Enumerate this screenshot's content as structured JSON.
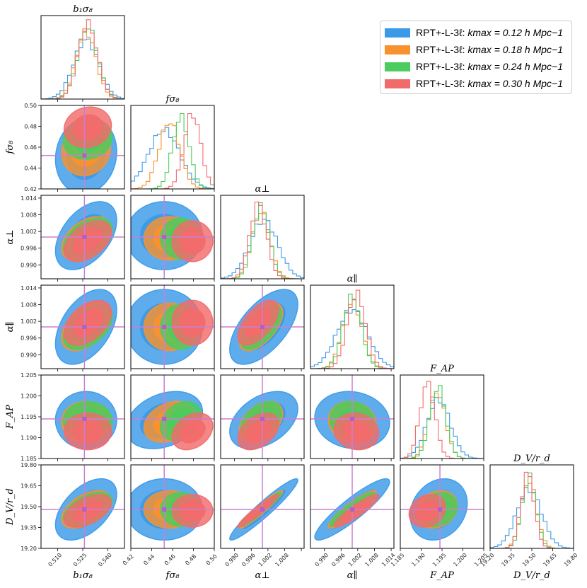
{
  "chart_data": {
    "type": "corner",
    "parameters": [
      {
        "key": "b1s8",
        "title": "b₁σ₈",
        "range": [
          0.5,
          0.55
        ],
        "ticks": [
          0.51,
          0.525,
          0.54
        ],
        "ticklabels": [
          "0.510",
          "0.525",
          "0.540"
        ],
        "truth": 0.526
      },
      {
        "key": "fs8",
        "title": "fσ₈",
        "range": [
          0.42,
          0.5
        ],
        "ticks": [
          0.42,
          0.44,
          0.46,
          0.48,
          0.5
        ],
        "ticklabels": [
          "0.42",
          "0.44",
          "0.46",
          "0.48",
          "0.50"
        ],
        "truth": 0.452
      },
      {
        "key": "aperp",
        "title": "α⊥",
        "range": [
          0.985,
          1.015
        ],
        "ticks": [
          0.99,
          0.996,
          1.002,
          1.008,
          1.014
        ],
        "ticklabels": [
          "0.990",
          "0.996",
          "1.002",
          "1.008",
          "1.014"
        ],
        "truth": 1.0
      },
      {
        "key": "apar",
        "title": "α∥",
        "range": [
          0.985,
          1.015
        ],
        "ticks": [
          0.99,
          0.996,
          1.002,
          1.008,
          1.014
        ],
        "ticklabels": [
          "0.990",
          "0.996",
          "1.002",
          "1.008",
          "1.014"
        ],
        "truth": 1.0
      },
      {
        "key": "FAP",
        "title": "F_AP",
        "range": [
          1.185,
          1.205
        ],
        "ticks": [
          1.185,
          1.19,
          1.195,
          1.2,
          1.205
        ],
        "ticklabels": [
          "1.185",
          "1.190",
          "1.195",
          "1.200",
          "1.205"
        ],
        "truth": 1.1945
      },
      {
        "key": "DVrd",
        "title": "D_V/r_d",
        "range": [
          19.2,
          19.8
        ],
        "ticks": [
          19.2,
          19.35,
          19.5,
          19.65,
          19.8
        ],
        "ticklabels": [
          "19.20",
          "19.35",
          "19.50",
          "19.65",
          "19.80"
        ],
        "truth": 19.48
      }
    ],
    "series": [
      {
        "name": "RPT+-L-3ℓ: k_max = 0.12 h Mpc⁻¹",
        "color": "#3b9ae8",
        "means": [
          0.527,
          0.452,
          1.0005,
          1.0,
          1.1942,
          19.48
        ],
        "sigmas": [
          0.0075,
          0.015,
          0.005,
          0.0055,
          0.0028,
          0.09
        ]
      },
      {
        "name": "RPT+-L-3ℓ: k_max = 0.18 h Mpc⁻¹",
        "color": "#f8922e",
        "means": [
          0.527,
          0.457,
          0.9995,
          1.0,
          1.1938,
          19.48
        ],
        "sigmas": [
          0.006,
          0.01,
          0.0032,
          0.0035,
          0.002,
          0.055
        ]
      },
      {
        "name": "RPT+-L-3ℓ: k_max = 0.24 h Mpc⁻¹",
        "color": "#4bcc5e",
        "means": [
          0.528,
          0.468,
          0.9995,
          1.0,
          1.194,
          19.48
        ],
        "sigmas": [
          0.006,
          0.008,
          0.003,
          0.0033,
          0.0019,
          0.05
        ]
      },
      {
        "name": "RPT+-L-3ℓ: k_max = 0.30 h Mpc⁻¹",
        "color": "#f26b6b",
        "means": [
          0.528,
          0.479,
          0.9985,
          1.0015,
          1.1915,
          19.47
        ],
        "sigmas": [
          0.0058,
          0.008,
          0.003,
          0.0033,
          0.0018,
          0.048
        ]
      }
    ],
    "legend_position": "top-right"
  },
  "legend": [
    {
      "label": "RPT+-L-3ℓ: ",
      "math": "kmax = 0.12 h Mpc−1",
      "color": "#3b9ae8"
    },
    {
      "label": "RPT+-L-3ℓ: ",
      "math": "kmax = 0.18 h Mpc−1",
      "color": "#f8922e"
    },
    {
      "label": "RPT+-L-3ℓ: ",
      "math": "kmax = 0.24 h Mpc−1",
      "color": "#4bcc5e"
    },
    {
      "label": "RPT+-L-3ℓ: ",
      "math": "kmax = 0.30 h Mpc−1",
      "color": "#f26b6b"
    }
  ],
  "truth_color": "#c77fd6"
}
